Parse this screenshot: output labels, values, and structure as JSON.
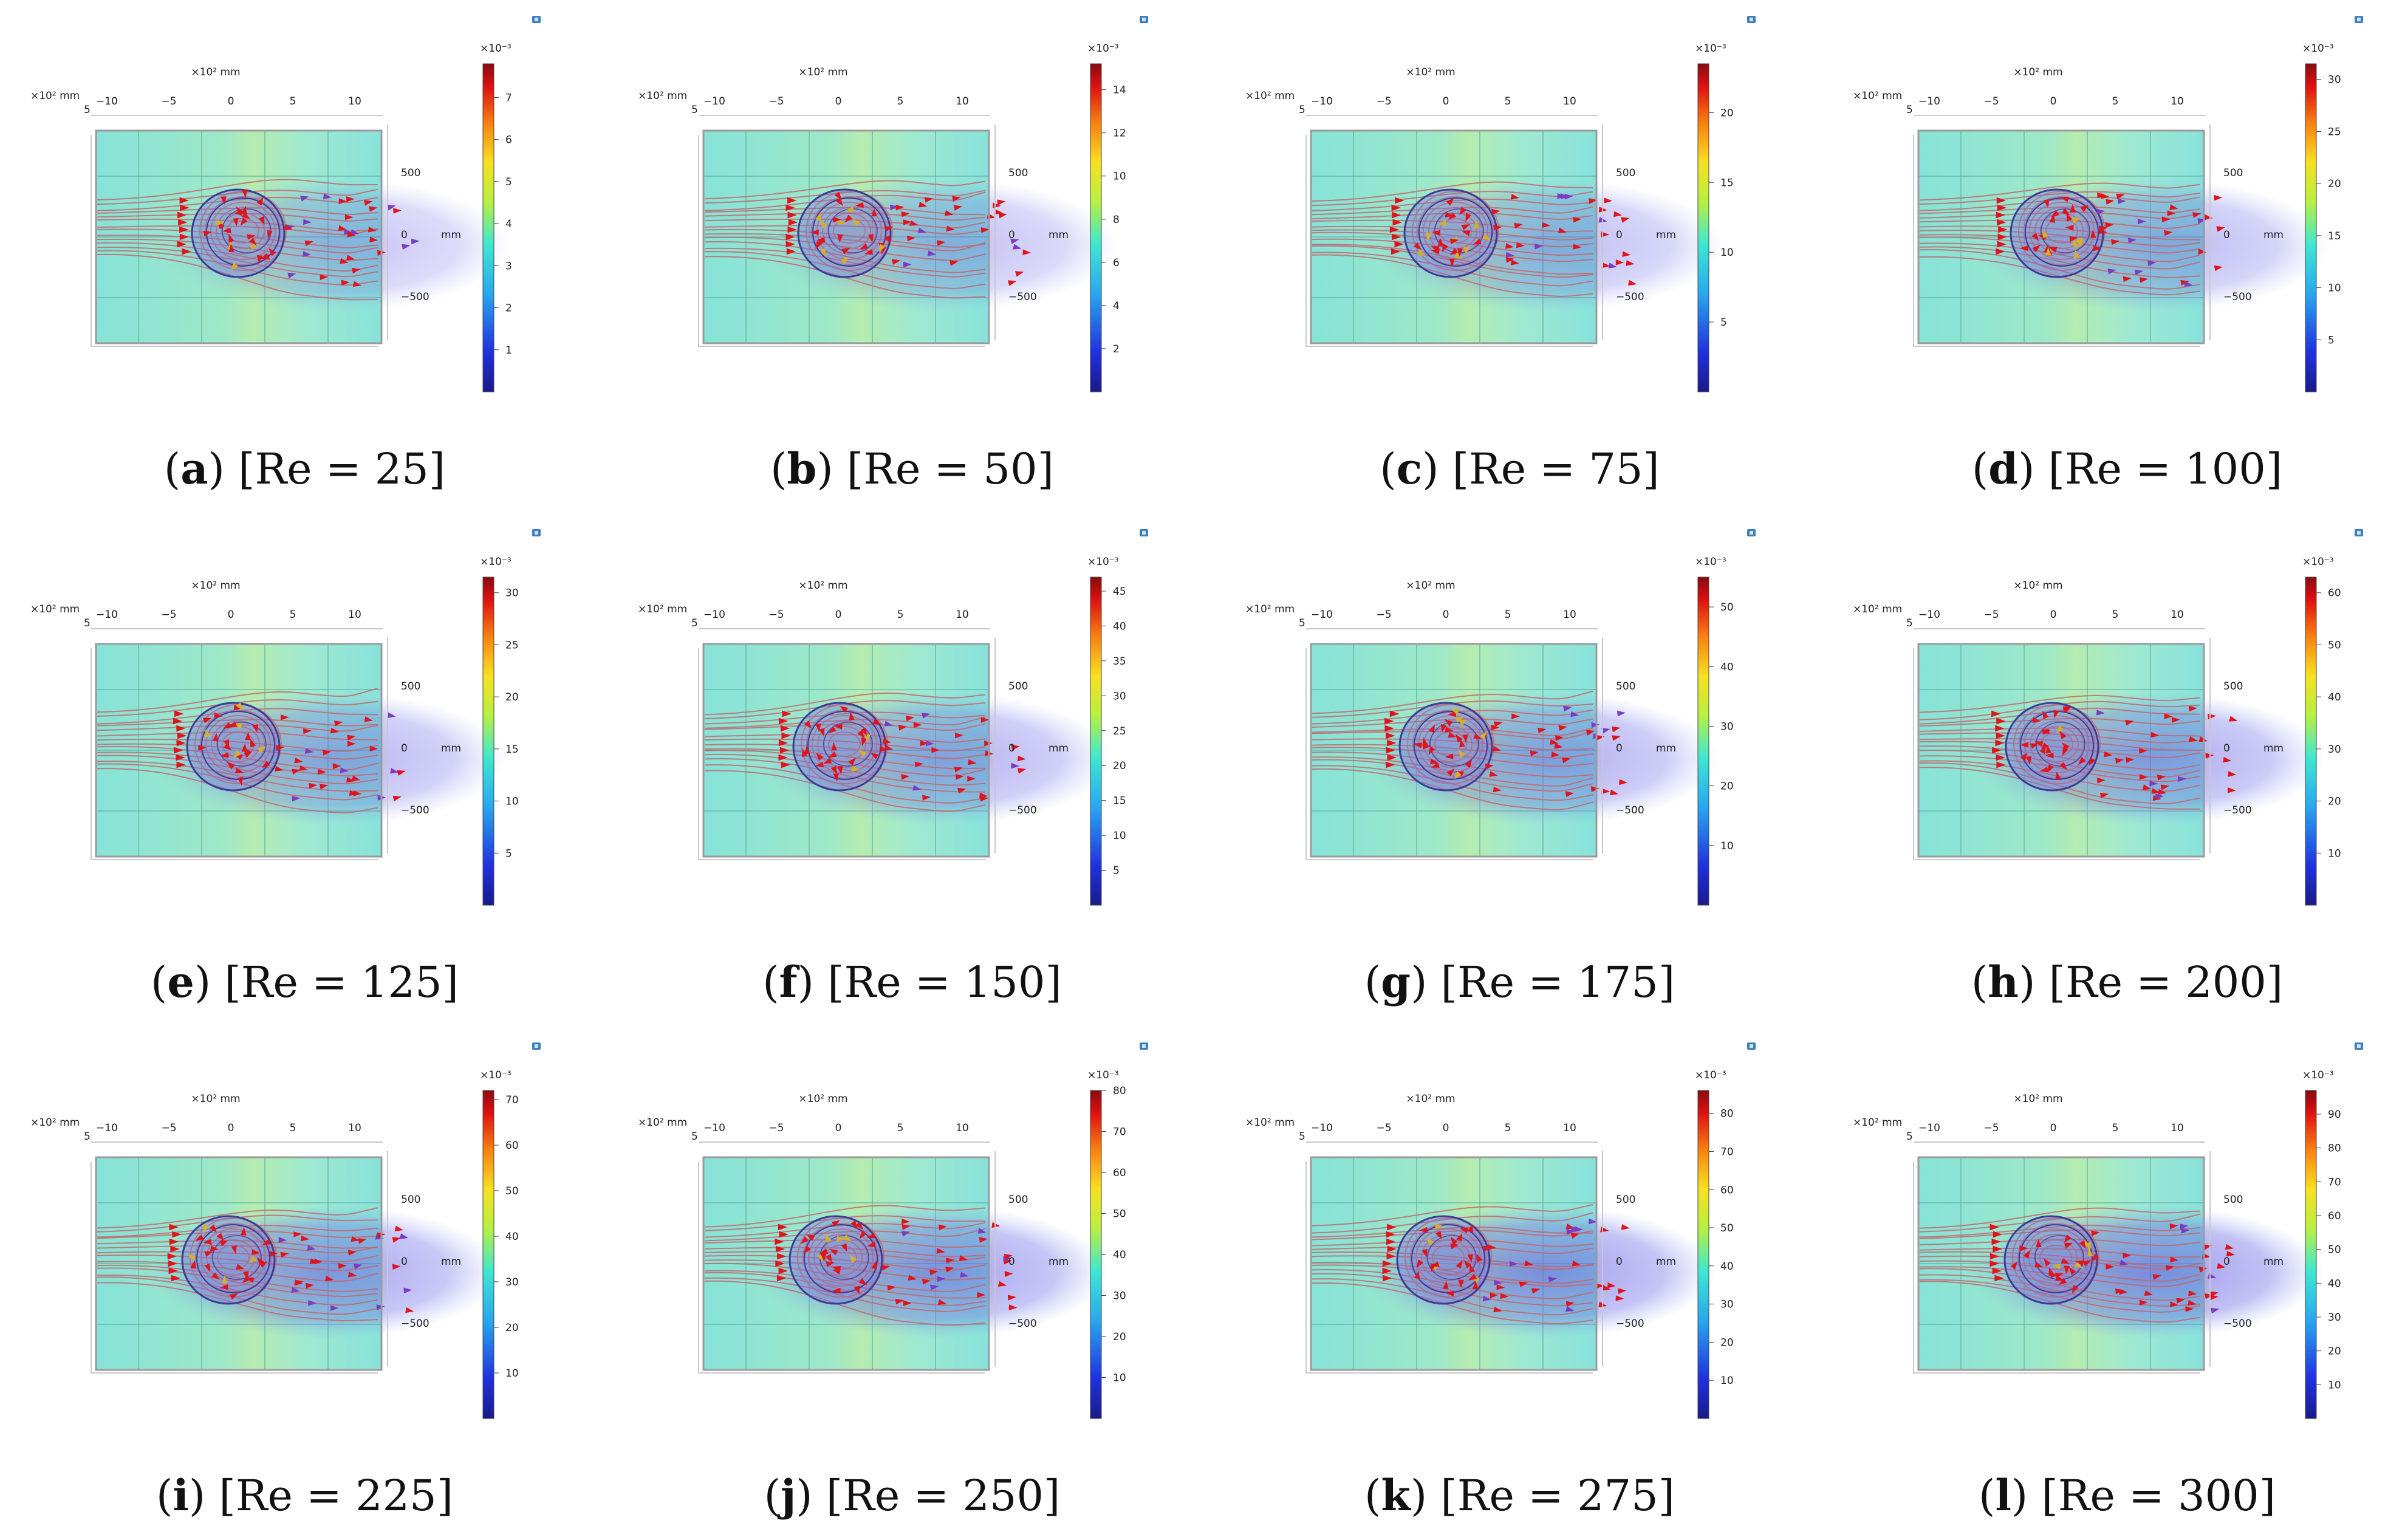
{
  "figure": {
    "panels": [
      {
        "letter": "a",
        "re_label": "Re = 25",
        "cbar_ticks": [
          "1",
          "2",
          "3",
          "4",
          "5",
          "6",
          "7"
        ],
        "cbar_max": 7.8
      },
      {
        "letter": "b",
        "re_label": "Re = 50",
        "cbar_ticks": [
          "2",
          "4",
          "6",
          "8",
          "10",
          "12",
          "14"
        ],
        "cbar_max": 15.2
      },
      {
        "letter": "c",
        "re_label": "Re = 75",
        "cbar_ticks": [
          "5",
          "10",
          "15",
          "20"
        ],
        "cbar_max": 23.5
      },
      {
        "letter": "d",
        "re_label": "Re = 100",
        "cbar_ticks": [
          "5",
          "10",
          "15",
          "20",
          "25",
          "30"
        ],
        "cbar_max": 31.5
      },
      {
        "letter": "e",
        "re_label": "Re = 125",
        "cbar_ticks": [
          "5",
          "10",
          "15",
          "20",
          "25",
          "30"
        ],
        "cbar_max": 31.5
      },
      {
        "letter": "f",
        "re_label": "Re = 150",
        "cbar_ticks": [
          "5",
          "10",
          "15",
          "20",
          "25",
          "30",
          "35",
          "40",
          "45"
        ],
        "cbar_max": 47
      },
      {
        "letter": "g",
        "re_label": "Re = 175",
        "cbar_ticks": [
          "10",
          "20",
          "30",
          "40",
          "50"
        ],
        "cbar_max": 55
      },
      {
        "letter": "h",
        "re_label": "Re = 200",
        "cbar_ticks": [
          "10",
          "20",
          "30",
          "40",
          "50",
          "60"
        ],
        "cbar_max": 63
      },
      {
        "letter": "i",
        "re_label": "Re = 225",
        "cbar_ticks": [
          "10",
          "20",
          "30",
          "40",
          "50",
          "60",
          "70"
        ],
        "cbar_max": 72
      },
      {
        "letter": "j",
        "re_label": "Re = 250",
        "cbar_ticks": [
          "10",
          "20",
          "30",
          "40",
          "50",
          "60",
          "70",
          "80"
        ],
        "cbar_max": 80
      },
      {
        "letter": "k",
        "re_label": "Re = 275",
        "cbar_ticks": [
          "10",
          "20",
          "30",
          "40",
          "50",
          "60",
          "70",
          "80"
        ],
        "cbar_max": 86
      },
      {
        "letter": "l",
        "re_label": "Re = 300",
        "cbar_ticks": [
          "10",
          "20",
          "30",
          "40",
          "50",
          "60",
          "70",
          "80",
          "90"
        ],
        "cbar_max": 97
      }
    ],
    "axis": {
      "x_ticks": [
        "−10",
        "−5",
        "0",
        "5",
        "10"
      ],
      "x_label": "×10² mm",
      "y_label": "×10² mm",
      "y_top": "5",
      "z_ticks": [
        "500",
        "0",
        "−500"
      ],
      "z_unit": "mm",
      "cbar_exponent": "×10⁻³"
    },
    "colors": {
      "field_background": "#8ee8da",
      "streamline": "#c2686e",
      "arrow": "#e0141c",
      "arrow_purple": "#7a3cc0",
      "cylinder": "#3b3b98"
    }
  }
}
